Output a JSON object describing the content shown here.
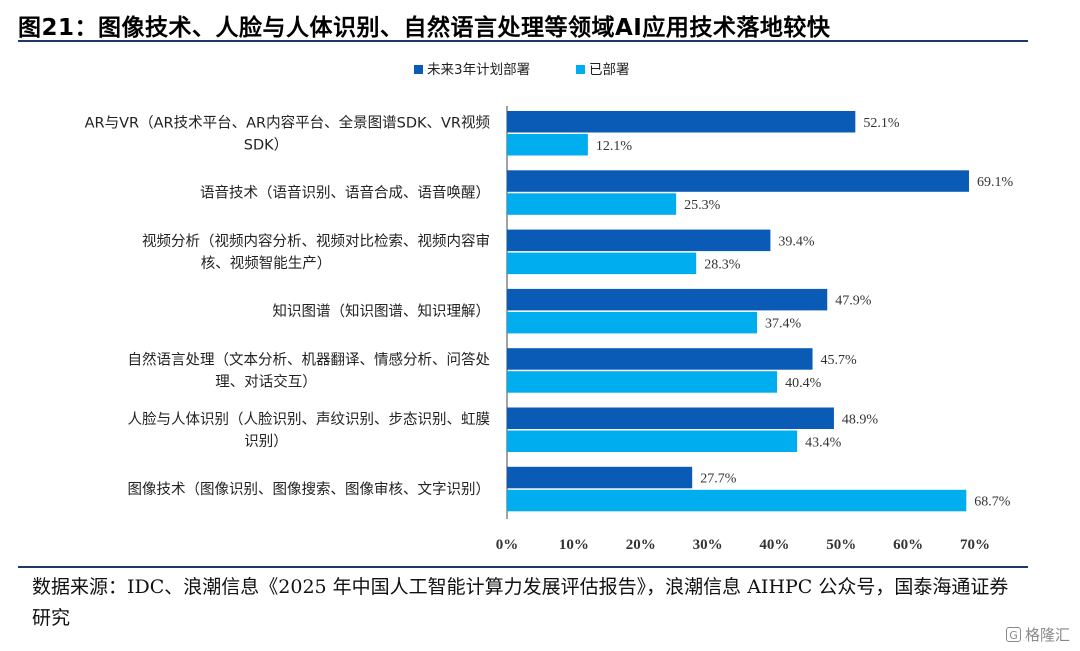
{
  "title": "图21：图像技术、人脸与人体识别、自然语言处理等领域AI应用技术落地较快",
  "chart_data": {
    "type": "bar",
    "orientation": "horizontal",
    "categories": [
      [
        "AR与VR（AR技术平台、AR内容平台、全景图谱SDK、VR视频",
        "SDK）"
      ],
      [
        "语音技术（语音识别、语音合成、语音唤醒）"
      ],
      [
        "视频分析（视频内容分析、视频对比检索、视频内容审",
        "核、视频智能生产）"
      ],
      [
        "知识图谱（知识图谱、知识理解）"
      ],
      [
        "自然语言处理（文本分析、机器翻译、情感分析、问答处",
        "理、对话交互）"
      ],
      [
        "人脸与人体识别（人脸识别、声纹识别、步态识别、虹膜",
        "识别）"
      ],
      [
        "图像技术（图像识别、图像搜索、图像审核、文字识别）"
      ]
    ],
    "series": [
      {
        "name": "未来3年计划部署",
        "color": "#0a5bb5",
        "values": [
          52.1,
          69.1,
          39.4,
          47.9,
          45.7,
          48.9,
          27.7
        ],
        "labels": [
          "52.1%",
          "69.1%",
          "39.4%",
          "47.9%",
          "45.7%",
          "48.9%",
          "27.7%"
        ]
      },
      {
        "name": "已部署",
        "color": "#00aeef",
        "values": [
          12.1,
          25.3,
          28.3,
          37.4,
          40.4,
          43.4,
          68.7
        ],
        "labels": [
          "12.1%",
          "25.3%",
          "28.3%",
          "37.4%",
          "40.4%",
          "43.4%",
          "68.7%"
        ]
      }
    ],
    "xlim": [
      0,
      70
    ],
    "xticks": [
      "0%",
      "10%",
      "20%",
      "30%",
      "40%",
      "50%",
      "60%",
      "70%"
    ],
    "legend": "top-center",
    "grid": false
  },
  "source": "数据来源：IDC、浪潮信息《2025 年中国人工智能计算力发展评估报告》，浪潮信息 AIHPC 公众号，国泰海通证券研究",
  "watermark": "格隆汇"
}
